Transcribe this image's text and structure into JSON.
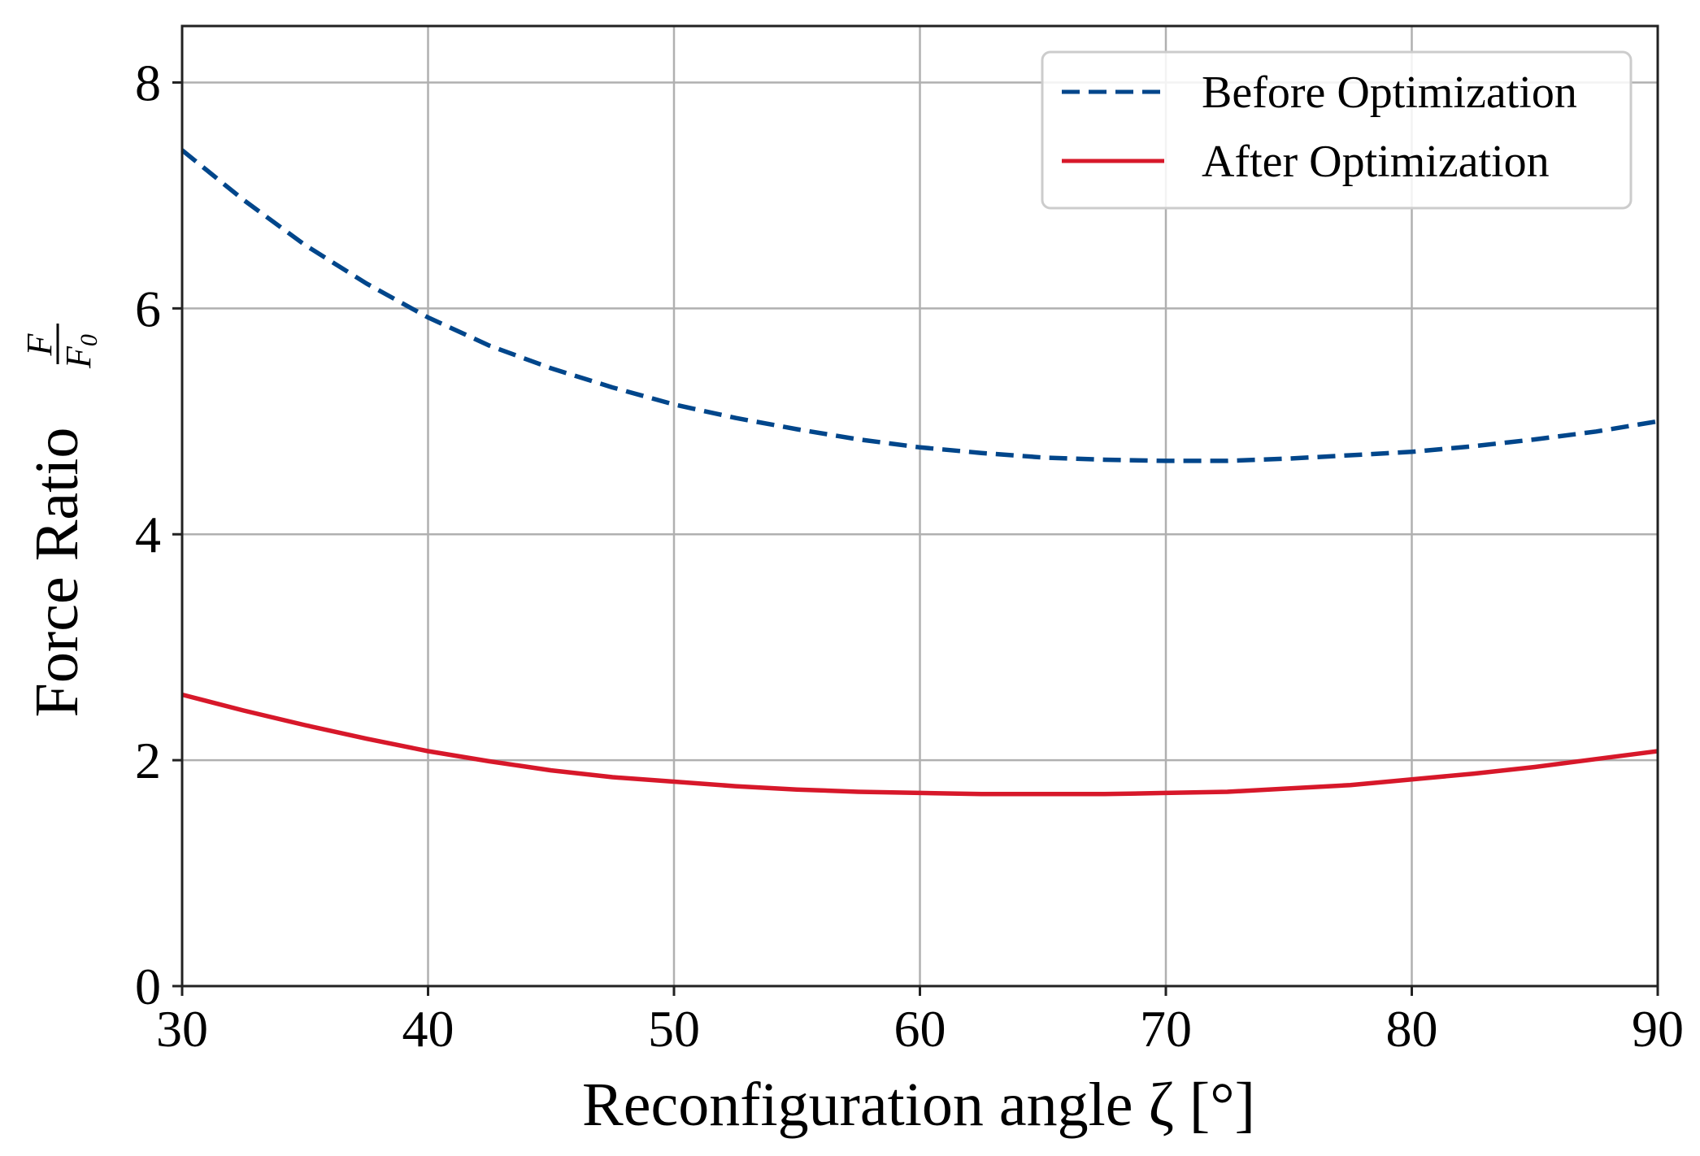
{
  "chart_data": {
    "type": "line",
    "x": [
      30,
      32.5,
      35,
      37.5,
      40,
      42.5,
      45,
      47.5,
      50,
      52.5,
      55,
      57.5,
      60,
      62.5,
      65,
      67.5,
      70,
      72.5,
      75,
      77.5,
      80,
      82.5,
      85,
      87.5,
      90
    ],
    "series": [
      {
        "name": "Before Optimization",
        "color": "#00468b",
        "dash": "dashed",
        "values": [
          7.4,
          6.96,
          6.56,
          6.22,
          5.92,
          5.67,
          5.47,
          5.3,
          5.15,
          5.03,
          4.93,
          4.84,
          4.77,
          4.72,
          4.68,
          4.66,
          4.65,
          4.65,
          4.67,
          4.7,
          4.73,
          4.78,
          4.84,
          4.91,
          5.0
        ]
      },
      {
        "name": "After Optimization",
        "color": "#d7182a",
        "dash": "solid",
        "values": [
          2.58,
          2.44,
          2.31,
          2.19,
          2.08,
          1.99,
          1.91,
          1.85,
          1.81,
          1.77,
          1.74,
          1.72,
          1.71,
          1.7,
          1.7,
          1.7,
          1.71,
          1.72,
          1.75,
          1.78,
          1.83,
          1.88,
          1.94,
          2.01,
          2.08
        ]
      }
    ],
    "xlim": [
      30,
      90
    ],
    "ylim": [
      0,
      8.5
    ],
    "xticks": [
      30,
      40,
      50,
      60,
      70,
      80,
      90
    ],
    "yticks": [
      0,
      2,
      4,
      6,
      8
    ],
    "xlabel": "Reconfiguration angle ζ [°]",
    "ylabel_text": "Force Ratio",
    "ylabel_frac_num": "F",
    "ylabel_frac_den": "F",
    "ylabel_frac_den_sub": "0",
    "grid": true,
    "legend_position": "top-right"
  }
}
